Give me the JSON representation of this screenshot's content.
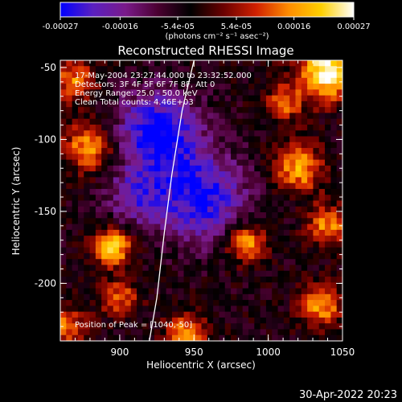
{
  "colorbar": {
    "ticks": [
      "-0.00027",
      "-0.00016",
      "-5.4e-05",
      "5.4e-05",
      "0.00016",
      "0.00027"
    ],
    "tick_values": [
      -0.00027,
      -0.00016,
      -5.4e-05,
      5.4e-05,
      0.00016,
      0.00027
    ],
    "range": [
      -0.00027,
      0.00027
    ],
    "unit_label": "(photons cm⁻² s⁻¹ asec⁻²)",
    "colors": [
      "#0000ff",
      "#5a20c0",
      "#7a1a8a",
      "#4a0030",
      "#000000",
      "#6a0000",
      "#d02000",
      "#ff8c00",
      "#ffd000",
      "#ffffff"
    ]
  },
  "chart_data": {
    "type": "heatmap",
    "title": "Reconstructed RHESSI Image",
    "xlabel": "Heliocentric X (arcsec)",
    "ylabel": "Heliocentric Y (arcsec)",
    "xlim": [
      860,
      1050
    ],
    "ylim": [
      -240,
      -45
    ],
    "x_ticks": [
      900,
      950,
      1000,
      1050
    ],
    "y_ticks": [
      -50,
      -100,
      -150,
      -200
    ],
    "limb_curve": {
      "x": [
        920,
        925,
        930,
        935,
        942,
        950
      ],
      "y": [
        -240,
        -210,
        -165,
        -125,
        -80,
        -45
      ]
    },
    "info_lines": [
      "17-May-2004 23:27:44.000 to 23:32:52.000",
      "Detectors: 3F 4F 5F 6F 7F 8F, Att 0",
      "Energy Range: 25.0 - 50.0 keV",
      "Clean     Total counts: 4.46E+03"
    ],
    "peak_label": "Position of Peak = [1040,-50]",
    "grid": false
  },
  "footer": {
    "timestamp": "30-Apr-2022 20:23"
  }
}
